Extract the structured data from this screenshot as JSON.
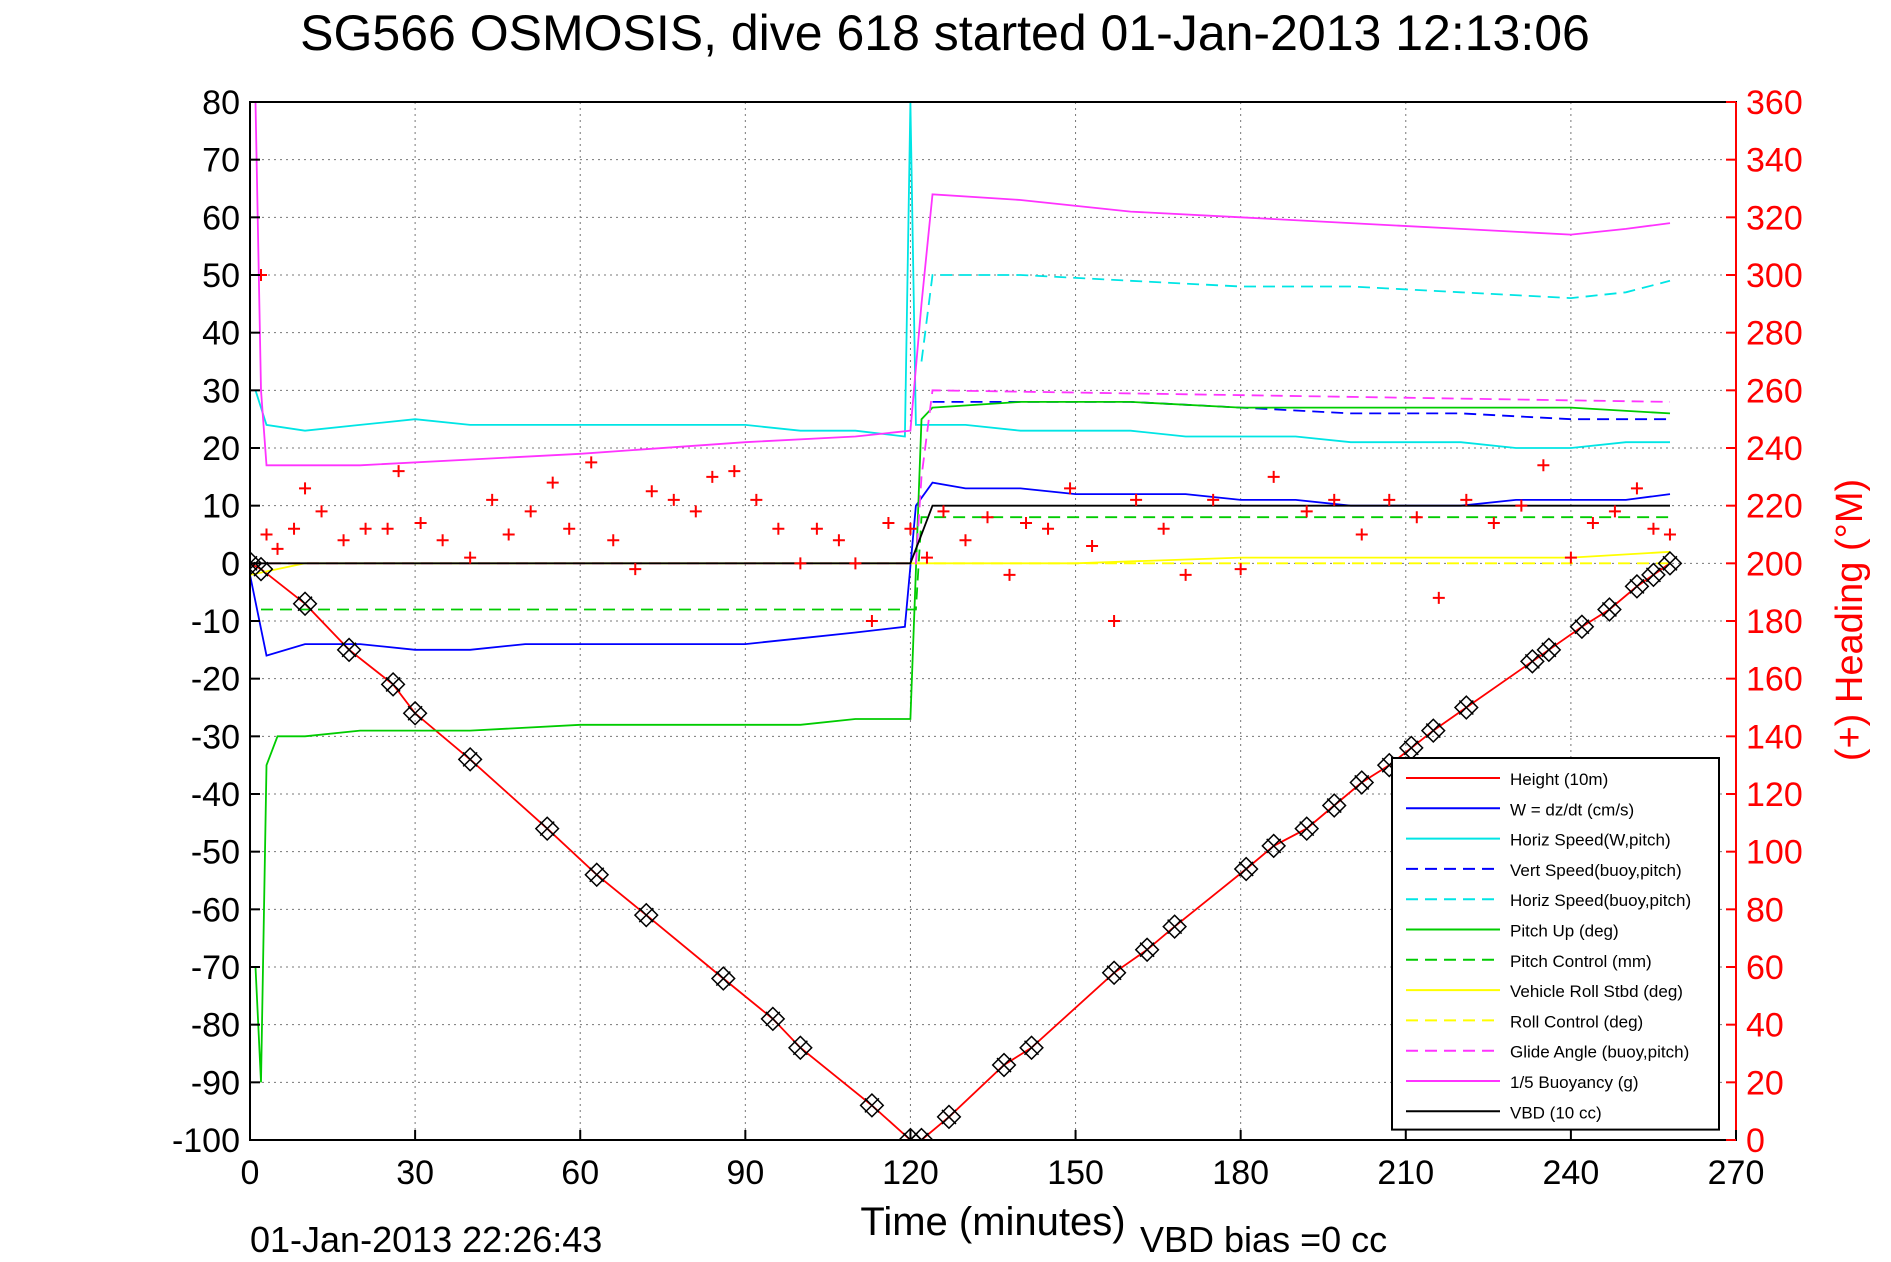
{
  "chart_data": {
    "type": "line",
    "title": "SG566 OSMOSIS, dive 618 started 01-Jan-2013 12:13:06",
    "xlabel": "Time (minutes)",
    "ylabel": "",
    "y2label": "(+) Heading (°M)",
    "footer_left": "01-Jan-2013 22:26:43",
    "footer_right": "VBD bias =0 cc",
    "xlim": [
      0,
      270
    ],
    "ylim": [
      -100,
      80
    ],
    "y2lim": [
      0,
      360
    ],
    "xticks": [
      0,
      30,
      60,
      90,
      120,
      150,
      180,
      210,
      240,
      270
    ],
    "yticks": [
      80,
      70,
      60,
      50,
      40,
      30,
      20,
      10,
      0,
      -10,
      -20,
      -30,
      -40,
      -50,
      -60,
      -70,
      -80,
      -90,
      -100
    ],
    "y2ticks": [
      360,
      340,
      320,
      300,
      280,
      260,
      240,
      220,
      200,
      180,
      160,
      140,
      120,
      100,
      80,
      60,
      40,
      20,
      0
    ],
    "grid": true,
    "legend_position": "bottom-right",
    "colors": {
      "right_axis": "#ff0000"
    },
    "legend": [
      {
        "label": "Height (10m)",
        "color": "#ff0000",
        "dash": "solid"
      },
      {
        "label": "W = dz/dt (cm/s)",
        "color": "#0000ff",
        "dash": "solid"
      },
      {
        "label": "Horiz Speed(W,pitch)",
        "color": "#00e5e5",
        "dash": "solid"
      },
      {
        "label": "Vert Speed(buoy,pitch)",
        "color": "#0000ff",
        "dash": "dashed"
      },
      {
        "label": "Horiz Speed(buoy,pitch)",
        "color": "#00e5e5",
        "dash": "dashed"
      },
      {
        "label": "Pitch Up (deg)",
        "color": "#00cc00",
        "dash": "solid"
      },
      {
        "label": "Pitch Control (mm)",
        "color": "#00cc00",
        "dash": "dashed"
      },
      {
        "label": "Vehicle Roll Stbd (deg)",
        "color": "#ffff00",
        "dash": "solid"
      },
      {
        "label": "Roll Control (deg)",
        "color": "#ffff00",
        "dash": "dashed"
      },
      {
        "label": "Glide Angle (buoy,pitch)",
        "color": "#ff33ff",
        "dash": "dashed"
      },
      {
        "label": "1/5 Buoyancy (g)",
        "color": "#ff33ff",
        "dash": "solid"
      },
      {
        "label": "VBD (10 cc)",
        "color": "#000000",
        "dash": "solid"
      }
    ],
    "series": [
      {
        "name": "Height (10m)",
        "color": "#ff0000",
        "dash": "solid",
        "x": [
          0,
          2,
          10,
          18,
          26,
          30,
          40,
          54,
          63,
          72,
          86,
          95,
          100,
          113,
          120,
          122,
          127,
          137,
          142,
          157,
          163,
          168,
          181,
          186,
          192,
          197,
          202,
          207,
          211,
          215,
          221,
          233,
          236,
          242,
          247,
          252,
          255,
          258
        ],
        "values": [
          0,
          -1,
          -7,
          -15,
          -21,
          -26,
          -34,
          -46,
          -54,
          -61,
          -72,
          -79,
          -84,
          -94,
          -100,
          -100,
          -96,
          -87,
          -84,
          -71,
          -67,
          -63,
          -53,
          -49,
          -46,
          -42,
          -38,
          -35,
          -32,
          -29,
          -25,
          -17,
          -15,
          -11,
          -8,
          -4,
          -2,
          0
        ]
      },
      {
        "name": "W = dz/dt (cm/s)",
        "color": "#0000ff",
        "dash": "solid",
        "x": [
          0,
          3,
          10,
          20,
          30,
          40,
          50,
          60,
          70,
          80,
          90,
          100,
          110,
          119,
          121,
          124,
          130,
          140,
          150,
          160,
          170,
          180,
          190,
          200,
          210,
          220,
          230,
          240,
          250,
          258
        ],
        "values": [
          -2,
          -16,
          -14,
          -14,
          -15,
          -15,
          -14,
          -14,
          -14,
          -14,
          -14,
          -13,
          -12,
          -11,
          10,
          14,
          13,
          13,
          12,
          12,
          12,
          11,
          11,
          10,
          10,
          10,
          11,
          11,
          11,
          12
        ]
      },
      {
        "name": "Horiz Speed(W,pitch)",
        "color": "#00e5e5",
        "dash": "solid",
        "x": [
          1,
          3,
          10,
          20,
          30,
          40,
          50,
          60,
          70,
          80,
          90,
          100,
          110,
          119,
          120,
          121,
          124,
          130,
          140,
          150,
          160,
          170,
          180,
          190,
          200,
          210,
          220,
          230,
          240,
          250,
          258
        ],
        "values": [
          30,
          24,
          23,
          24,
          25,
          24,
          24,
          24,
          24,
          24,
          24,
          23,
          23,
          22,
          80,
          24,
          24,
          24,
          23,
          23,
          23,
          22,
          22,
          22,
          21,
          21,
          21,
          20,
          20,
          21,
          21
        ]
      },
      {
        "name": "Vert Speed(buoy,pitch)",
        "color": "#0000ff",
        "dash": "dashed",
        "x": [
          124,
          140,
          160,
          180,
          200,
          220,
          240,
          258
        ],
        "values": [
          28,
          28,
          28,
          27,
          26,
          26,
          25,
          25
        ]
      },
      {
        "name": "Horiz Speed(buoy,pitch)",
        "color": "#00e5e5",
        "dash": "dashed",
        "x": [
          122,
          124,
          140,
          160,
          180,
          200,
          220,
          240,
          250,
          258
        ],
        "values": [
          35,
          50,
          50,
          49,
          48,
          48,
          47,
          46,
          47,
          49
        ]
      },
      {
        "name": "Pitch Up (deg)",
        "color": "#00cc00",
        "dash": "solid",
        "x": [
          1,
          2,
          3,
          5,
          10,
          20,
          30,
          40,
          60,
          80,
          100,
          110,
          118,
          120,
          122,
          124,
          140,
          160,
          180,
          200,
          220,
          240,
          258
        ],
        "values": [
          -70,
          -90,
          -35,
          -30,
          -30,
          -29,
          -29,
          -29,
          -28,
          -28,
          -28,
          -27,
          -27,
          -27,
          25,
          27,
          28,
          28,
          27,
          27,
          27,
          27,
          26
        ]
      },
      {
        "name": "Pitch Control (mm)",
        "color": "#00cc00",
        "dash": "dashed",
        "x": [
          2,
          121,
          122,
          258
        ],
        "values": [
          -8,
          -8,
          8,
          8
        ]
      },
      {
        "name": "Vehicle Roll Stbd (deg)",
        "color": "#ffff00",
        "dash": "solid",
        "x": [
          0,
          10,
          30,
          60,
          90,
          120,
          122,
          150,
          180,
          210,
          240,
          258
        ],
        "values": [
          -2,
          0,
          0,
          0,
          0,
          0,
          0,
          0,
          1,
          1,
          1,
          2
        ]
      },
      {
        "name": "Roll Control (deg)",
        "color": "#ffff00",
        "dash": "dashed",
        "x": [
          0,
          121,
          122,
          258
        ],
        "values": [
          0,
          0,
          0,
          0
        ]
      },
      {
        "name": "Glide Angle (buoy,pitch)",
        "color": "#ff33ff",
        "dash": "dashed",
        "x": [
          0,
          121,
          122,
          124,
          258
        ],
        "values": [
          0,
          0,
          15,
          30,
          28
        ]
      },
      {
        "name": "1/5 Buoyancy (g)",
        "color": "#ff33ff",
        "dash": "solid",
        "x": [
          1,
          2,
          3,
          20,
          60,
          90,
          110,
          120,
          122,
          124,
          140,
          160,
          180,
          200,
          220,
          240,
          250,
          258
        ],
        "values": [
          80,
          30,
          17,
          17,
          19,
          21,
          22,
          23,
          45,
          64,
          63,
          61,
          60,
          59,
          58,
          57,
          58,
          59
        ]
      },
      {
        "name": "VBD (10 cc)",
        "color": "#000000",
        "dash": "solid",
        "x": [
          0,
          120,
          122,
          124,
          258
        ],
        "values": [
          0,
          0,
          5,
          10,
          10
        ]
      },
      {
        "name": "Heading",
        "axis": "right",
        "color": "#ff0000",
        "marker": "+",
        "x": [
          2,
          3,
          5,
          8,
          10,
          13,
          17,
          21,
          25,
          27,
          31,
          35,
          40,
          44,
          47,
          51,
          55,
          58,
          62,
          66,
          70,
          73,
          77,
          81,
          84,
          88,
          92,
          96,
          100,
          103,
          107,
          110,
          113,
          116,
          120,
          123,
          126,
          130,
          134,
          138,
          141,
          145,
          149,
          153,
          157,
          161,
          166,
          170,
          175,
          180,
          186,
          192,
          197,
          202,
          207,
          212,
          216,
          221,
          226,
          231,
          235,
          240,
          244,
          248,
          252,
          255,
          258
        ],
        "values": [
          300,
          210,
          205,
          212,
          226,
          218,
          208,
          212,
          212,
          232,
          214,
          208,
          202,
          222,
          210,
          218,
          228,
          212,
          235,
          208,
          198,
          225,
          222,
          218,
          230,
          232,
          222,
          212,
          200,
          212,
          208,
          200,
          180,
          214,
          212,
          202,
          218,
          208,
          216,
          196,
          214,
          212,
          226,
          206,
          180,
          222,
          212,
          196,
          222,
          198,
          230,
          218,
          222,
          210,
          222,
          216,
          188,
          222,
          214,
          220,
          234,
          202,
          214,
          218,
          226,
          212,
          210
        ]
      }
    ]
  }
}
